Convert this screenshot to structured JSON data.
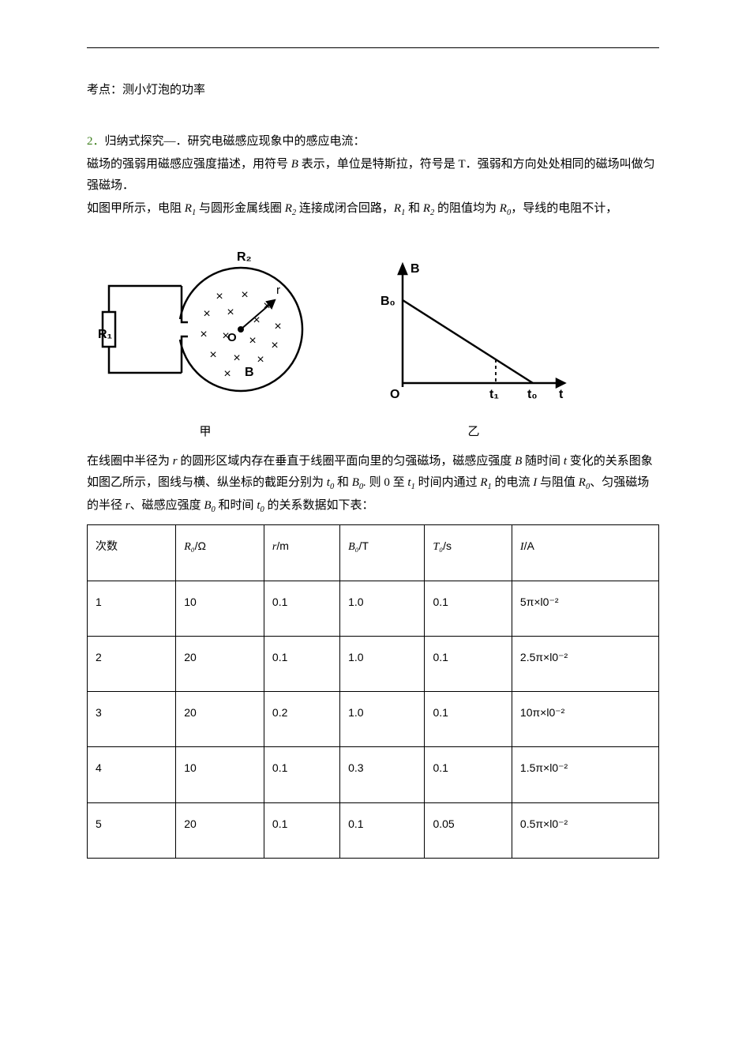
{
  "topic_label": "考点：测小灯泡的功率",
  "q2": {
    "prefix": "2．",
    "title": "归纳式探究—．研究电磁感应现象中的感应电流：",
    "p1_a": "磁场的强弱用磁感应强度描述，用符号 ",
    "p1_b": " 表示，单位是特斯拉，符号是 T．强弱和方向处处相同的磁场叫做匀强磁场．",
    "p2_a": "如图甲所示，电阻 ",
    "p2_b": " 与圆形金属线圈 ",
    "p2_c": " 连接成闭合回路，",
    "p2_d": " 和 ",
    "p2_e": " 的阻值均为 ",
    "p2_f": "，导线的电阻不计，",
    "p3_a": "在线圈中半径为 ",
    "p3_b": " 的圆形区域内存在垂直于线圈平面向里的匀强磁场，磁感应强度 ",
    "p3_c": " 随时间 ",
    "p3_d": " 变化的关系图象如图乙所示，图线与横、纵坐标的截距分别为 ",
    "p3_e": " 和 ",
    "p3_f": " 则 0 至 ",
    "p3_g": " 时间内通过 ",
    "p3_h": " 的电流 ",
    "p3_i": " 与阻值 ",
    "p3_j": "、匀强磁场的半径 ",
    "p3_k": "、磁感应强度 ",
    "p3_l": " 和时间 ",
    "p3_m": " 的关系数据如下表：",
    "vars": {
      "B": "B",
      "R1": "R",
      "R1s": "1",
      "R2": "R",
      "R2s": "2",
      "R0": "R",
      "R0s": "0",
      "r": "r",
      "t": "t",
      "t0": "t",
      "t0s": "0",
      "t1": "t",
      "t1s": "1",
      "B0": "B",
      "B0s": "0",
      "I": "I"
    }
  },
  "diagram_jia": {
    "label_R1": "R₁",
    "label_R2": "R₂",
    "label_O": "O",
    "label_B": "B",
    "label_r": "r",
    "caption": "甲",
    "stroke": "#000000",
    "radius": 78,
    "inner_radius": 56
  },
  "diagram_yi": {
    "label_B": "B",
    "label_B0": "B₀",
    "label_O": "O",
    "label_t1": "t₁",
    "label_t0": "t₀",
    "label_t": "t",
    "caption": "乙",
    "stroke": "#000000"
  },
  "table": {
    "columns": [
      "次数",
      "R₀/Ω",
      "r/m",
      "B₀/T",
      "T₀/s",
      "I/A"
    ],
    "rows": [
      [
        "1",
        "10",
        "0.1",
        "1.0",
        "0.1",
        "5π×l0⁻²"
      ],
      [
        "2",
        "20",
        "0.1",
        "1.0",
        "0.1",
        "2.5π×l0⁻²"
      ],
      [
        "3",
        "20",
        "0.2",
        "1.0",
        "0.1",
        "10π×l0⁻²"
      ],
      [
        "4",
        "10",
        "0.1",
        "0.3",
        "0.1",
        "1.5π×l0⁻²"
      ],
      [
        "5",
        "20",
        "0.1",
        "0.1",
        "0.05",
        "0.5π×l0⁻²"
      ]
    ],
    "col_vars_italic": [
      false,
      true,
      true,
      true,
      true,
      true
    ]
  }
}
